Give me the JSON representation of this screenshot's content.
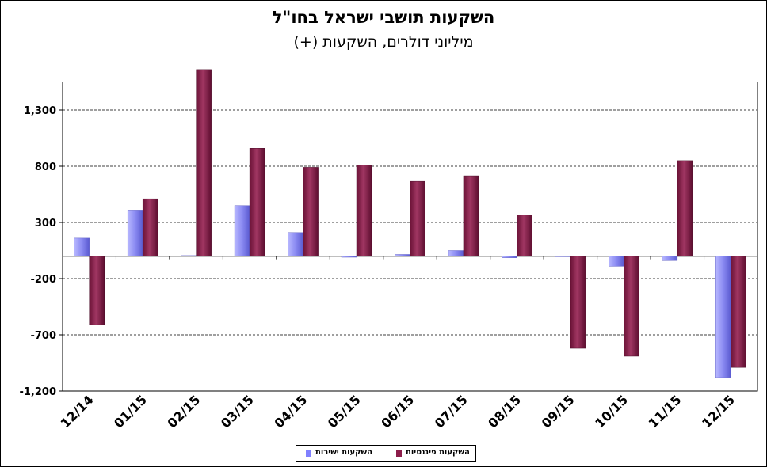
{
  "chart_data": {
    "type": "bar",
    "title": "השקעות תושבי ישראל בחו\"ל",
    "subtitle": "מיליוני דולרים, השקעות (+)",
    "xlabel": "",
    "ylabel": "",
    "categories": [
      "12/14",
      "01/15",
      "02/15",
      "03/15",
      "04/15",
      "05/15",
      "06/15",
      "07/15",
      "08/15",
      "09/15",
      "10/15",
      "11/15",
      "12/15"
    ],
    "y_ticks": [
      -1200,
      -700,
      -200,
      300,
      800,
      1300
    ],
    "y_tick_labels": [
      "-1,200",
      "-700",
      "-200",
      "300",
      "800",
      "1,300"
    ],
    "ylim": [
      -1200,
      1550
    ],
    "grid": true,
    "legend_position": "bottom",
    "series": [
      {
        "name": "השקעות ישירות",
        "color": "#8080ff",
        "values": [
          160,
          410,
          5,
          450,
          210,
          -10,
          15,
          50,
          -15,
          0,
          -90,
          -40,
          -1080
        ]
      },
      {
        "name": "השקעות פיננסיות",
        "color": "#8c1c4a",
        "values": [
          -610,
          510,
          1660,
          960,
          790,
          810,
          665,
          715,
          365,
          -820,
          -890,
          850,
          -990
        ]
      }
    ]
  }
}
